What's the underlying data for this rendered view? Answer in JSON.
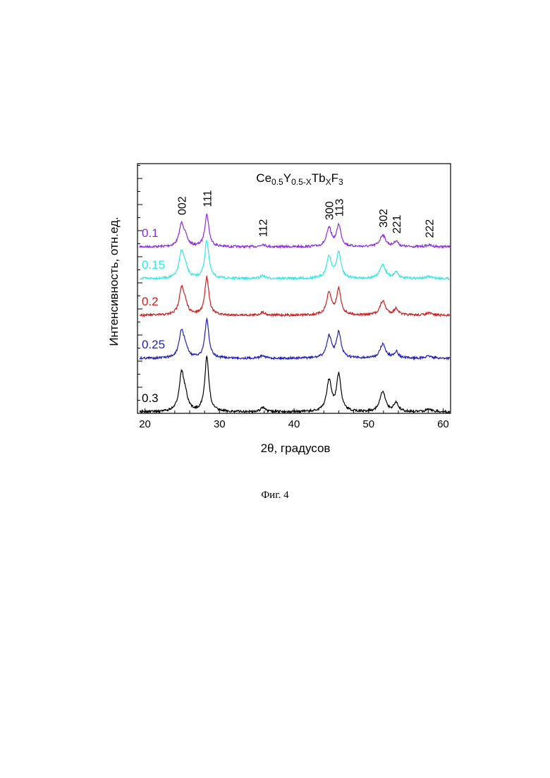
{
  "caption": "Фиг. 4",
  "chart_data": {
    "type": "line",
    "title": {
      "parts": [
        {
          "text": "Ce",
          "sub": false
        },
        {
          "text": "0.5",
          "sub": true
        },
        {
          "text": "Y",
          "sub": false
        },
        {
          "text": "0.5-X",
          "sub": true
        },
        {
          "text": "Tb",
          "sub": false
        },
        {
          "text": "X",
          "sub": true
        },
        {
          "text": "F",
          "sub": false
        },
        {
          "text": "3",
          "sub": true
        }
      ]
    },
    "xlabel": "2θ, градусов",
    "ylabel": "Интенсивность, отн.ед.",
    "xlim": [
      19,
      61
    ],
    "xticks": [
      20,
      30,
      40,
      50,
      60
    ],
    "y_tick_labels_shown": false,
    "peaks": [
      {
        "label": "002",
        "x": 24.9
      },
      {
        "label": "111",
        "x": 28.3
      },
      {
        "label": "112",
        "x": 35.8
      },
      {
        "label": "300",
        "x": 44.7
      },
      {
        "label": "113",
        "x": 46.0
      },
      {
        "label": "302",
        "x": 51.9
      },
      {
        "label": "221",
        "x": 53.7
      },
      {
        "label": "222",
        "x": 58.1
      }
    ],
    "series": [
      {
        "name": "0.1",
        "color": "#8a2be2",
        "offset": 4,
        "scale": 0.8
      },
      {
        "name": "0.15",
        "color": "#33e6e6",
        "offset": 3,
        "scale": 0.95
      },
      {
        "name": "0.2",
        "color": "#cc1f1f",
        "offset": 2,
        "scale": 0.95
      },
      {
        "name": "0.25",
        "color": "#1f1fbf",
        "offset": 1,
        "scale": 0.95
      },
      {
        "name": "0.3",
        "color": "#000000",
        "offset": 0,
        "scale": 1.35
      }
    ],
    "peak_profile": [
      {
        "x": 24.9,
        "h": 1.0,
        "w": 0.38
      },
      {
        "x": 25.4,
        "h": 0.35,
        "w": 0.4
      },
      {
        "x": 28.3,
        "h": 1.5,
        "w": 0.33
      },
      {
        "x": 35.8,
        "h": 0.12,
        "w": 0.35
      },
      {
        "x": 44.7,
        "h": 0.85,
        "w": 0.4
      },
      {
        "x": 46.0,
        "h": 1.0,
        "w": 0.35
      },
      {
        "x": 51.9,
        "h": 0.55,
        "w": 0.45
      },
      {
        "x": 53.7,
        "h": 0.25,
        "w": 0.35
      },
      {
        "x": 58.1,
        "h": 0.08,
        "w": 0.5
      }
    ]
  }
}
